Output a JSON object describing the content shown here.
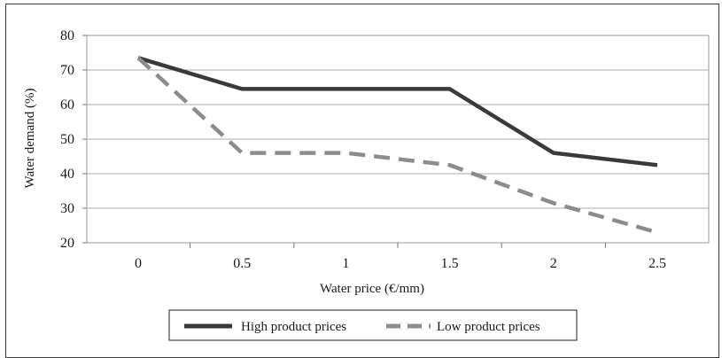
{
  "chart_data": {
    "type": "line",
    "title": "",
    "xlabel": "Water price (€/mm)",
    "ylabel": "Water demand (%)",
    "categories": [
      "0",
      "0.5",
      "1",
      "1.5",
      "2",
      "2.5"
    ],
    "x": [
      0,
      0.5,
      1,
      1.5,
      2,
      2.5
    ],
    "ylim": [
      20,
      80
    ],
    "yticks": [
      20,
      30,
      40,
      50,
      60,
      70,
      80
    ],
    "grid": true,
    "legend_position": "bottom",
    "series": [
      {
        "name": "High product prices",
        "values": [
          73.5,
          64.5,
          64.5,
          64.5,
          46,
          42.5
        ],
        "color": "#3a3a3a",
        "style": "solid"
      },
      {
        "name": "Low product prices",
        "values": [
          73.5,
          46,
          46,
          42.5,
          31.5,
          23
        ],
        "color": "#8c8c8c",
        "style": "dashed"
      }
    ]
  }
}
